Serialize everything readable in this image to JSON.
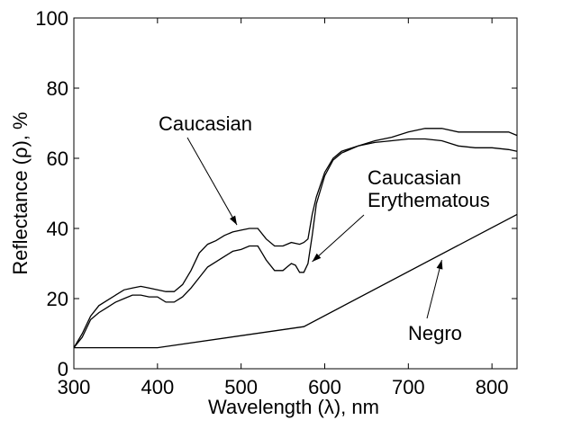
{
  "chart_data": {
    "type": "line",
    "title": "",
    "xlabel": "Wavelength (λ), nm",
    "ylabel": "Reflectance (ρ), %",
    "xlim": [
      300,
      830
    ],
    "ylim": [
      0,
      100
    ],
    "xticks": [
      300,
      400,
      500,
      600,
      700,
      800
    ],
    "yticks": [
      0,
      20,
      40,
      60,
      80,
      100
    ],
    "grid": false,
    "line_color": "#000000",
    "series": [
      {
        "name": "Caucasian",
        "x": [
          300,
          310,
          320,
          330,
          340,
          350,
          360,
          370,
          380,
          390,
          400,
          410,
          420,
          430,
          440,
          450,
          460,
          470,
          480,
          490,
          500,
          510,
          520,
          530,
          540,
          550,
          560,
          570,
          575,
          580,
          585,
          590,
          600,
          610,
          620,
          640,
          660,
          680,
          700,
          720,
          740,
          760,
          780,
          800,
          820,
          830
        ],
        "y": [
          6,
          10,
          15,
          18,
          19.5,
          21,
          22.5,
          23,
          23.5,
          23,
          22.5,
          22,
          22,
          24,
          28,
          33,
          35.5,
          36.5,
          38,
          39,
          39.5,
          40,
          40,
          37,
          35,
          35,
          36,
          35.5,
          36,
          37,
          44,
          49,
          56,
          60,
          62,
          63.5,
          65,
          66,
          67.5,
          68.5,
          68.5,
          67.5,
          67.5,
          67.5,
          67.5,
          66.5
        ]
      },
      {
        "name": "Caucasian Erythematous",
        "x": [
          300,
          310,
          320,
          330,
          340,
          350,
          360,
          370,
          380,
          390,
          400,
          410,
          420,
          430,
          440,
          450,
          460,
          470,
          480,
          490,
          500,
          510,
          520,
          525,
          530,
          540,
          550,
          555,
          560,
          565,
          570,
          575,
          580,
          585,
          590,
          600,
          610,
          620,
          640,
          660,
          680,
          700,
          720,
          740,
          760,
          780,
          800,
          820,
          830
        ],
        "y": [
          6,
          9,
          14,
          16,
          17.5,
          19,
          20,
          21,
          21,
          20.5,
          20.5,
          19,
          19,
          20.5,
          23,
          26,
          29,
          30.5,
          32,
          33.5,
          34,
          35,
          35,
          33,
          31,
          28,
          28,
          29,
          30,
          29.5,
          27.5,
          27.5,
          30,
          38,
          47,
          55,
          59.5,
          61.5,
          63.5,
          64.5,
          65,
          65.5,
          65.5,
          65,
          63.5,
          63,
          63,
          62.5,
          62
        ]
      },
      {
        "name": "Negro",
        "x": [
          300,
          400,
          575,
          830
        ],
        "y": [
          6,
          6,
          12,
          44
        ]
      }
    ],
    "annotations": [
      {
        "text": "Caucasian",
        "target_x": 495,
        "target_y": 41
      },
      {
        "text": "Caucasian",
        "text2": "Erythematous",
        "target_x": 585,
        "target_y": 30.5
      },
      {
        "text": "Negro",
        "target_x": 740,
        "target_y": 31
      }
    ]
  }
}
